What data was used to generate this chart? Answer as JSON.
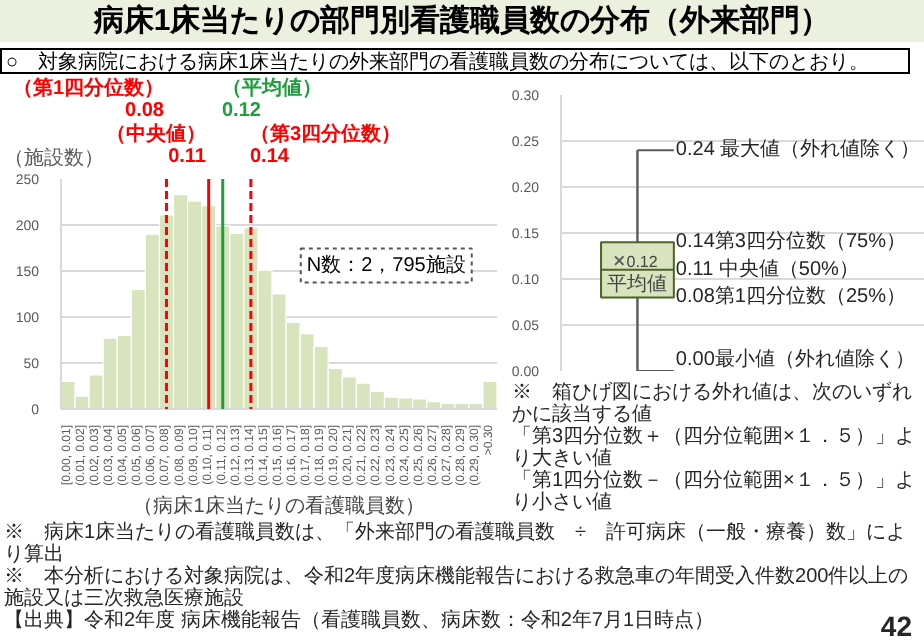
{
  "chart_data": [
    {
      "type": "bar",
      "title": "病床1床当たりの部門別看護職員数の分布（外来部門）",
      "subtitle": "○　対象病院における病床1床当たりの外来部門の看護職員数の分布については、以下のとおり。",
      "xlabel": "（病床1床当たりの看護職員数）",
      "ylabel": "（施設数）",
      "values": [
        30,
        14,
        37,
        77,
        80,
        130,
        190,
        211,
        233,
        226,
        221,
        199,
        191,
        197,
        151,
        125,
        94,
        82,
        68,
        44,
        35,
        28,
        19,
        13,
        12,
        11,
        8,
        6,
        6,
        6,
        30
      ],
      "categories": [
        "[0.00, 0.01]",
        "(0.01, 0.02]",
        "(0.02, 0.03]",
        "(0.03, 0.04]",
        "(0.04, 0.05]",
        "(0.05, 0.06]",
        "(0.06, 0.07]",
        "(0.07, 0.08]",
        "(0.08, 0.09]",
        "(0.09, 0.10]",
        "(0.10, 0.11]",
        "(0.11, 0.12]",
        "(0.12, 0.13]",
        "(0.13, 0.14]",
        "(0.14, 0.15]",
        "(0.15, 0.16]",
        "(0.16, 0.17]",
        "(0.17, 0.18]",
        "(0.18, 0.19]",
        "(0.19, 0.20]",
        "(0.20, 0.21]",
        "(0.21, 0.22]",
        "(0.22, 0.23]",
        "(0.23, 0.24]",
        "(0.24, 0.25]",
        "(0.25, 0.26]",
        "(0.26, 0.27]",
        "(0.27, 0.28]",
        "(0.28, 0.29]",
        "(0.29, 0.30]",
        ">0.30"
      ],
      "color": "#d7e4bd",
      "ylim": [
        0,
        250
      ],
      "yticks": [
        0,
        50,
        100,
        150,
        200,
        250
      ],
      "grid": "y",
      "ref_lines": [
        {
          "axis": "x",
          "value": "(0.07, 0.08]",
          "label": "（第1四分位数）\n0.08",
          "color": "#ff0000",
          "line_style": "dashed"
        },
        {
          "axis": "x",
          "value": "(0.10, 0.11]",
          "label": "（中央値）\n0.11",
          "color": "#ff0000",
          "line_style": "solid"
        },
        {
          "axis": "x",
          "value": "(0.11, 0.12]",
          "label": "（平均値）\n0.12",
          "color": "#1e9e3c",
          "line_style": "solid"
        },
        {
          "axis": "x",
          "value": "(0.13, 0.14]",
          "label": "（第3四分位数）\n0.14",
          "color": "#ff0000",
          "line_style": "dashed"
        }
      ],
      "annotations": [
        "N数：2，795施設",
        "※　病床1床当たりの看護職員数は、「外来部門の看護職員数　÷　許可病床（一般・療養）数」により算出",
        "※　本分析における対象病院は、令和2年度病床機能報告における救急車の年間受入件数200件以上の施設又は三次救急医療施設",
        "【出典】令和2年度 病床機能報告（看護職員数、病床数：令和2年7月1日時点）",
        "42"
      ]
    },
    {
      "type": "box",
      "categories": [
        null
      ],
      "color": "#d7e4bd",
      "boxes": [
        {
          "low": 0,
          "q1": 0.08,
          "median": 0.11,
          "q3": 0.14,
          "high": 0.24,
          "mean": 0.12
        }
      ],
      "ylim": [
        0,
        0.3
      ],
      "yticks": [
        {
          "value": 0,
          "label": "0.00"
        },
        {
          "value": 0.05,
          "label": "0.05"
        },
        {
          "value": 0.1,
          "label": "0.10"
        },
        {
          "value": 0.15,
          "label": "0.15"
        },
        {
          "value": 0.2,
          "label": "0.20"
        },
        {
          "value": 0.25,
          "label": "0.25"
        },
        {
          "value": 0.3,
          "label": "0.30"
        }
      ],
      "grid": "y",
      "annotations": [
        "0.24 最大値（外れ値除く）",
        "0.14第3四分位数（75%）",
        "0.11 中央値（50%）",
        "0.12",
        "平均値",
        "0.08第1四分位数（25%）",
        "0.00最小値（外れ値除く）",
        "※　箱ひげ図における外れ値は、次のいずれかに該当する値",
        "「第3四分位数＋（四分位範囲×１．５）」より大きい値",
        "「第1四分位数－（四分位範囲×１．５）」より小さい値"
      ]
    }
  ]
}
